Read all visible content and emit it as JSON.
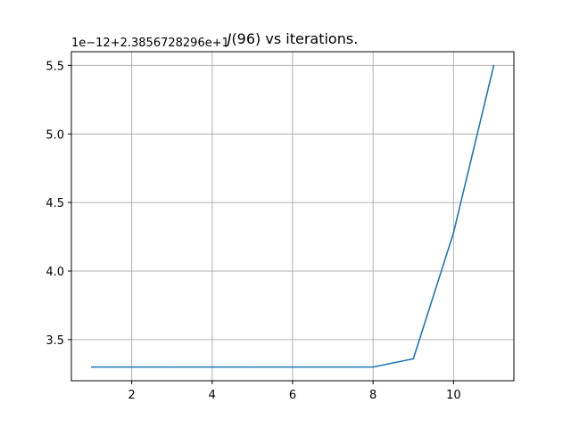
{
  "chart_data": {
    "type": "line",
    "title_italic": "J",
    "title_rest": "(96) vs iterations.",
    "offset_text": "1e−12+2.3856728296e+1",
    "xlabel": "",
    "ylabel": "",
    "xlim": [
      0.5,
      11.5
    ],
    "ylim": [
      3.2,
      5.6
    ],
    "xticks": [
      2,
      4,
      6,
      8,
      10
    ],
    "xtick_labels": [
      "2",
      "4",
      "6",
      "8",
      "10"
    ],
    "yticks": [
      3.5,
      4.0,
      4.5,
      5.0,
      5.5
    ],
    "ytick_labels": [
      "3.5",
      "4.0",
      "4.5",
      "5.0",
      "5.5"
    ],
    "grid": true,
    "series": [
      {
        "color": "#1f77b4",
        "x": [
          1,
          2,
          3,
          4,
          5,
          6,
          7,
          8,
          9,
          10,
          11
        ],
        "values": [
          3.3,
          3.3,
          3.3,
          3.3,
          3.3,
          3.3,
          3.3,
          3.3,
          3.36,
          4.28,
          5.5
        ]
      }
    ]
  }
}
